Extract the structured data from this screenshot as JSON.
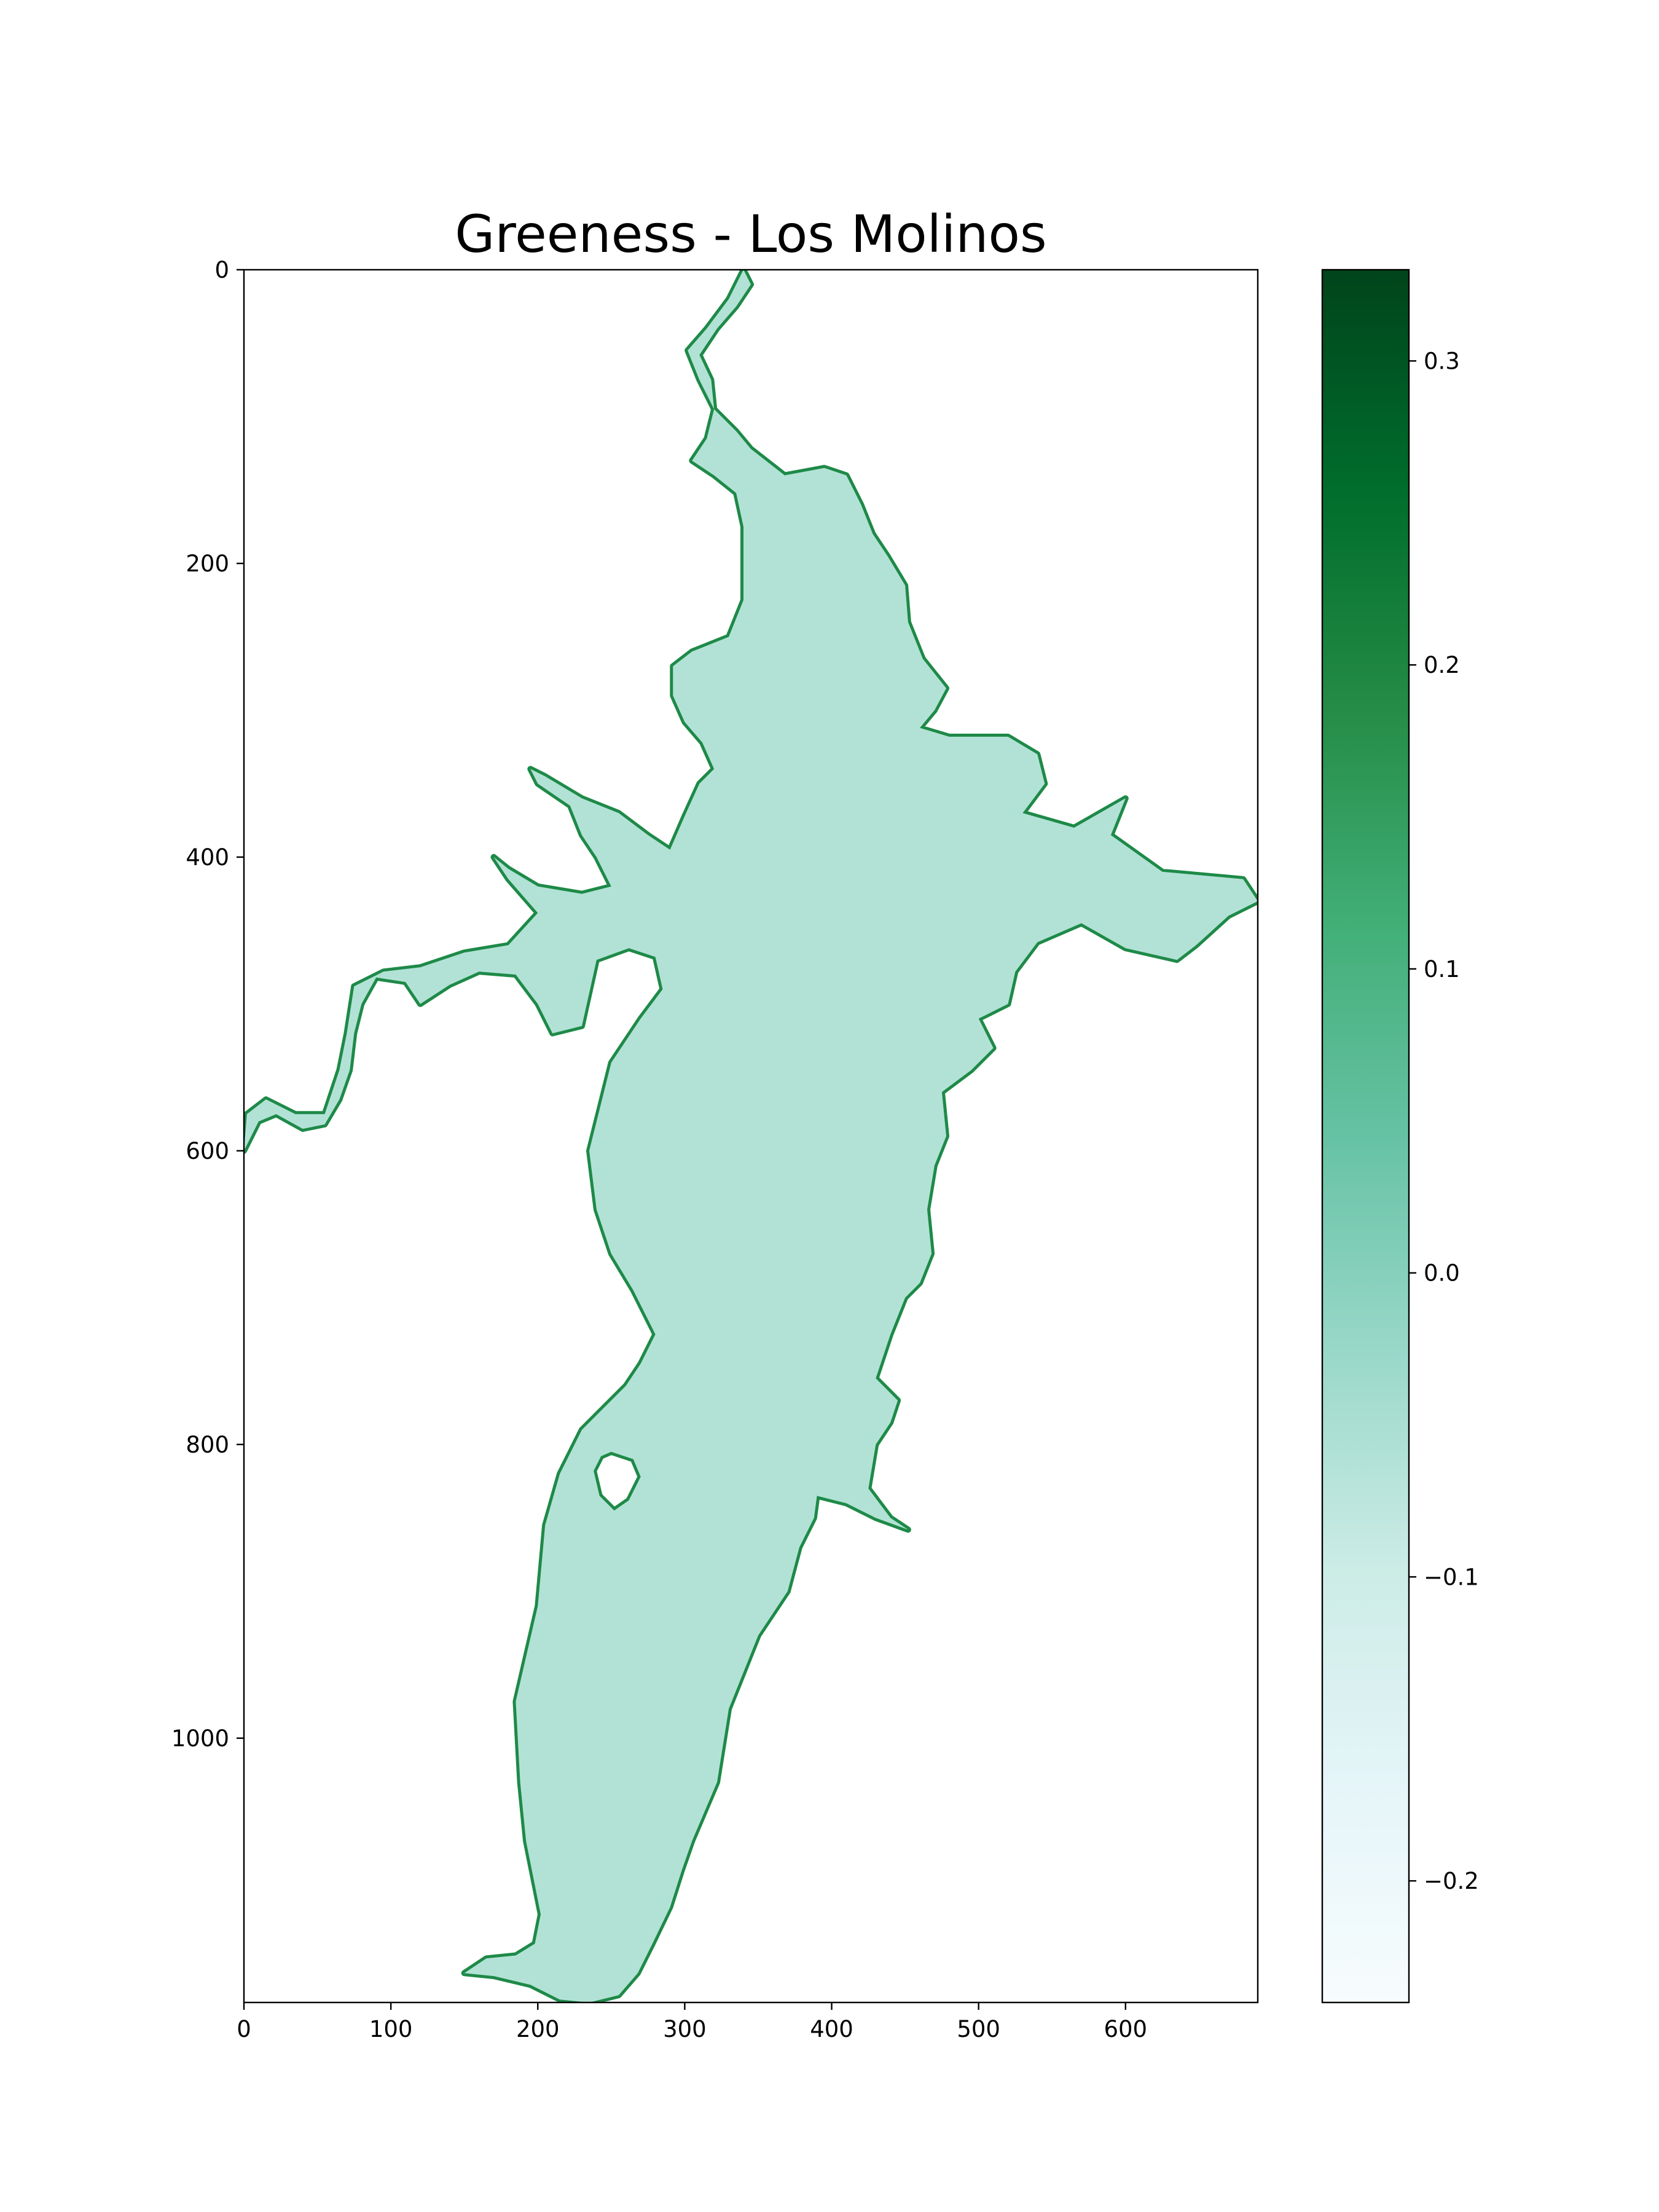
{
  "chart_data": {
    "type": "heatmap",
    "title": "Greeness - Los Molinos",
    "xlabel": "",
    "ylabel": "",
    "xlim": [
      0,
      690
    ],
    "ylim": [
      1180,
      0
    ],
    "x_ticks": [
      {
        "value": 0,
        "label": "0"
      },
      {
        "value": 100,
        "label": "100"
      },
      {
        "value": 200,
        "label": "200"
      },
      {
        "value": 300,
        "label": "300"
      },
      {
        "value": 400,
        "label": "400"
      },
      {
        "value": 500,
        "label": "500"
      },
      {
        "value": 600,
        "label": "600"
      }
    ],
    "y_ticks": [
      {
        "value": 0,
        "label": "0"
      },
      {
        "value": 200,
        "label": "200"
      },
      {
        "value": 400,
        "label": "400"
      },
      {
        "value": 600,
        "label": "600"
      },
      {
        "value": 800,
        "label": "800"
      },
      {
        "value": 1000,
        "label": "1000"
      }
    ],
    "colorbar": {
      "colormap": "BuGn",
      "range": [
        -0.24,
        0.33
      ],
      "ticks": [
        {
          "value": 0.3,
          "label": "0.3"
        },
        {
          "value": 0.2,
          "label": "0.2"
        },
        {
          "value": 0.1,
          "label": "0.1"
        },
        {
          "value": 0.0,
          "label": "0.0"
        },
        {
          "value": -0.1,
          "label": "−0.1"
        },
        {
          "value": -0.2,
          "label": "−0.2"
        }
      ],
      "stops": [
        "#f7fcfd",
        "#e5f5f9",
        "#ccece6",
        "#99d8c9",
        "#66c2a4",
        "#41ae76",
        "#238b45",
        "#006d2c",
        "#00441b"
      ]
    },
    "interior_value": -0.06,
    "shore_value": 0.15,
    "interior_color": "#b2e2d6",
    "shore_color": "#1e8a48",
    "reservoir_outline": [
      [
        340,
        0
      ],
      [
        345,
        10
      ],
      [
        335,
        25
      ],
      [
        322,
        40
      ],
      [
        310,
        58
      ],
      [
        318,
        75
      ],
      [
        320,
        95
      ],
      [
        335,
        110
      ],
      [
        345,
        122
      ],
      [
        368,
        140
      ],
      [
        395,
        135
      ],
      [
        410,
        140
      ],
      [
        420,
        160
      ],
      [
        428,
        180
      ],
      [
        438,
        195
      ],
      [
        450,
        215
      ],
      [
        452,
        240
      ],
      [
        462,
        265
      ],
      [
        478,
        285
      ],
      [
        470,
        300
      ],
      [
        460,
        312
      ],
      [
        480,
        318
      ],
      [
        520,
        318
      ],
      [
        540,
        330
      ],
      [
        545,
        350
      ],
      [
        530,
        370
      ],
      [
        565,
        380
      ],
      [
        600,
        360
      ],
      [
        590,
        385
      ],
      [
        625,
        410
      ],
      [
        680,
        415
      ],
      [
        690,
        430
      ],
      [
        670,
        440
      ],
      [
        648,
        460
      ],
      [
        635,
        470
      ],
      [
        600,
        462
      ],
      [
        570,
        445
      ],
      [
        540,
        458
      ],
      [
        525,
        478
      ],
      [
        520,
        500
      ],
      [
        500,
        510
      ],
      [
        510,
        530
      ],
      [
        495,
        545
      ],
      [
        475,
        560
      ],
      [
        478,
        590
      ],
      [
        470,
        610
      ],
      [
        465,
        640
      ],
      [
        468,
        670
      ],
      [
        460,
        690
      ],
      [
        450,
        700
      ],
      [
        440,
        725
      ],
      [
        430,
        755
      ],
      [
        445,
        770
      ],
      [
        440,
        785
      ],
      [
        430,
        800
      ],
      [
        425,
        830
      ],
      [
        440,
        850
      ],
      [
        452,
        858
      ],
      [
        430,
        850
      ],
      [
        410,
        840
      ],
      [
        390,
        835
      ],
      [
        388,
        850
      ],
      [
        378,
        870
      ],
      [
        370,
        900
      ],
      [
        350,
        930
      ],
      [
        330,
        980
      ],
      [
        322,
        1030
      ],
      [
        305,
        1070
      ],
      [
        298,
        1090
      ],
      [
        290,
        1115
      ],
      [
        278,
        1140
      ],
      [
        268,
        1160
      ],
      [
        255,
        1175
      ],
      [
        235,
        1180
      ],
      [
        215,
        1178
      ],
      [
        195,
        1168
      ],
      [
        170,
        1162
      ],
      [
        150,
        1160
      ],
      [
        165,
        1150
      ],
      [
        185,
        1148
      ],
      [
        198,
        1140
      ],
      [
        202,
        1120
      ],
      [
        192,
        1070
      ],
      [
        188,
        1030
      ],
      [
        185,
        975
      ],
      [
        200,
        910
      ],
      [
        205,
        855
      ],
      [
        215,
        820
      ],
      [
        230,
        790
      ],
      [
        260,
        760
      ],
      [
        270,
        745
      ],
      [
        280,
        725
      ],
      [
        265,
        695
      ],
      [
        250,
        670
      ],
      [
        240,
        640
      ],
      [
        235,
        600
      ],
      [
        250,
        540
      ],
      [
        270,
        510
      ],
      [
        285,
        490
      ],
      [
        280,
        468
      ],
      [
        262,
        462
      ],
      [
        240,
        470
      ],
      [
        230,
        515
      ],
      [
        210,
        520
      ],
      [
        200,
        500
      ],
      [
        185,
        480
      ],
      [
        160,
        478
      ],
      [
        140,
        487
      ],
      [
        120,
        500
      ],
      [
        110,
        485
      ],
      [
        90,
        482
      ],
      [
        80,
        500
      ],
      [
        75,
        520
      ],
      [
        72,
        545
      ],
      [
        65,
        565
      ],
      [
        55,
        582
      ],
      [
        40,
        585
      ],
      [
        22,
        575
      ],
      [
        10,
        580
      ],
      [
        0,
        600
      ],
      [
        2,
        575
      ],
      [
        15,
        565
      ],
      [
        35,
        575
      ],
      [
        55,
        575
      ],
      [
        65,
        545
      ],
      [
        70,
        520
      ],
      [
        75,
        488
      ],
      [
        95,
        478
      ],
      [
        120,
        475
      ],
      [
        150,
        465
      ],
      [
        180,
        460
      ],
      [
        200,
        438
      ],
      [
        180,
        415
      ],
      [
        170,
        400
      ],
      [
        180,
        408
      ],
      [
        200,
        420
      ],
      [
        230,
        425
      ],
      [
        250,
        420
      ],
      [
        240,
        400
      ],
      [
        230,
        385
      ],
      [
        222,
        365
      ],
      [
        200,
        350
      ],
      [
        195,
        340
      ],
      [
        205,
        345
      ],
      [
        230,
        360
      ],
      [
        255,
        370
      ],
      [
        275,
        385
      ],
      [
        290,
        395
      ],
      [
        300,
        372
      ],
      [
        310,
        350
      ],
      [
        320,
        340
      ],
      [
        312,
        322
      ],
      [
        300,
        308
      ],
      [
        292,
        290
      ],
      [
        292,
        270
      ],
      [
        305,
        260
      ],
      [
        330,
        250
      ],
      [
        340,
        225
      ],
      [
        340,
        175
      ],
      [
        335,
        152
      ],
      [
        320,
        140
      ],
      [
        305,
        130
      ],
      [
        315,
        115
      ],
      [
        320,
        95
      ],
      [
        310,
        75
      ],
      [
        302,
        55
      ],
      [
        315,
        40
      ],
      [
        330,
        20
      ]
    ],
    "island_outline": [
      [
        250,
        805
      ],
      [
        265,
        810
      ],
      [
        270,
        822
      ],
      [
        262,
        838
      ],
      [
        252,
        845
      ],
      [
        242,
        835
      ],
      [
        238,
        818
      ],
      [
        243,
        808
      ]
    ]
  }
}
